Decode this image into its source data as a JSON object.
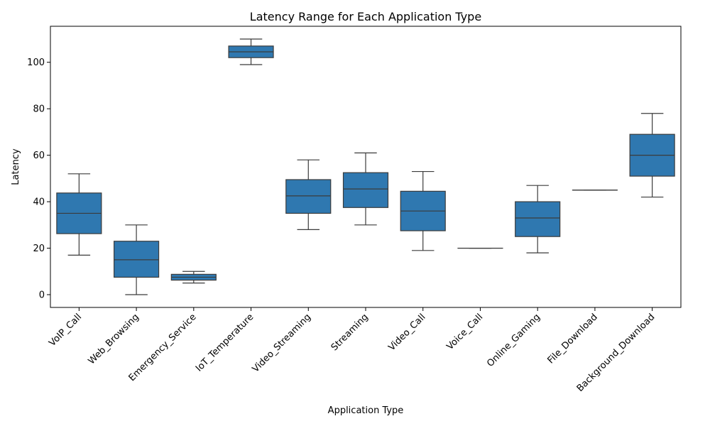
{
  "chart_data": {
    "type": "box",
    "title": "Latency Range for Each Application Type",
    "xlabel": "Application Type",
    "ylabel": "Latency",
    "ylim": [
      -5.5,
      115.5
    ],
    "yticks": [
      0,
      20,
      40,
      60,
      80,
      100
    ],
    "grid": false,
    "color": "#2f78b0",
    "categories": [
      "VoIP_Call",
      "Web_Browsing",
      "Emergency_Service",
      "IoT_Temperature",
      "Video_Streaming",
      "Streaming",
      "Video_Call",
      "Voice_Call",
      "Online_Gaming",
      "File_Download",
      "Background_Download"
    ],
    "boxes": [
      {
        "min": 17,
        "q1": 26.25,
        "median": 35,
        "q3": 43.75,
        "max": 52
      },
      {
        "min": 0,
        "q1": 7.5,
        "median": 15,
        "q3": 23,
        "max": 30
      },
      {
        "min": 5,
        "q1": 6.25,
        "median": 7.5,
        "q3": 8.75,
        "max": 10
      },
      {
        "min": 99,
        "q1": 102,
        "median": 104.5,
        "q3": 107,
        "max": 110
      },
      {
        "min": 28,
        "q1": 35,
        "median": 42.5,
        "q3": 49.5,
        "max": 58
      },
      {
        "min": 30,
        "q1": 37.5,
        "median": 45.5,
        "q3": 52.5,
        "max": 61
      },
      {
        "min": 19,
        "q1": 27.5,
        "median": 36,
        "q3": 44.5,
        "max": 53
      },
      {
        "min": 20,
        "q1": 20,
        "median": 20,
        "q3": 20,
        "max": 20
      },
      {
        "min": 18,
        "q1": 25,
        "median": 33,
        "q3": 40,
        "max": 47
      },
      {
        "min": 45,
        "q1": 45,
        "median": 45,
        "q3": 45,
        "max": 45
      },
      {
        "min": 42,
        "q1": 51,
        "median": 60,
        "q3": 69,
        "max": 78
      }
    ]
  }
}
